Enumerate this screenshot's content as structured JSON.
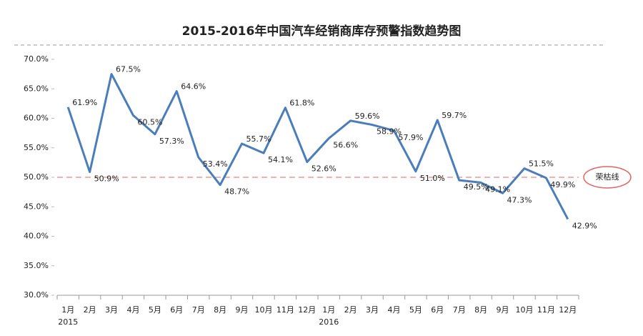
{
  "chart_data": {
    "type": "line",
    "title": "2015-2016年中国汽车经销商库存预警指数趋势图",
    "categories": [
      "1月",
      "2月",
      "3月",
      "4月",
      "5月",
      "6月",
      "7月",
      "8月",
      "9月",
      "10月",
      "11月",
      "12月",
      "1月",
      "2月",
      "3月",
      "4月",
      "5月",
      "6月",
      "7月",
      "8月",
      "9月",
      "10月",
      "11月",
      "12月"
    ],
    "years": [
      "2015",
      null,
      null,
      null,
      null,
      null,
      null,
      null,
      null,
      null,
      null,
      null,
      "2016",
      null,
      null,
      null,
      null,
      null,
      null,
      null,
      null,
      null,
      null,
      null
    ],
    "series": [
      {
        "name": "库存预警指数",
        "color": "#4a7ebb",
        "values": [
          61.9,
          50.9,
          67.5,
          60.5,
          57.3,
          64.6,
          53.4,
          48.7,
          55.7,
          54.1,
          61.8,
          52.6,
          56.6,
          59.6,
          58.9,
          57.9,
          51.0,
          59.7,
          49.5,
          49.1,
          47.3,
          51.5,
          49.9,
          42.9
        ],
        "value_labels": [
          "61.9%",
          "50.9%",
          "67.5%",
          "60.5%",
          "57.3%",
          "64.6%",
          "53.4%",
          "48.7%",
          "55.7%",
          "54.1%",
          "61.8%",
          "52.6%",
          "56.6%",
          "59.6%",
          "58.9%",
          "57.9%",
          "51.0%",
          "59.7%",
          "49.5%",
          "49.1%",
          "47.3%",
          "51.5%",
          "49.9%",
          "42.9%"
        ]
      }
    ],
    "reference_line": {
      "value": 50,
      "label": "荣枯线",
      "color": "#e06666"
    },
    "ylim": [
      30,
      70
    ],
    "yticks": [
      {
        "value": 30,
        "label": "30.0%"
      },
      {
        "value": 35,
        "label": "35.0%"
      },
      {
        "value": 40,
        "label": "40.0%"
      },
      {
        "value": 45,
        "label": "45.0%"
      },
      {
        "value": 50,
        "label": "50.0%"
      },
      {
        "value": 55,
        "label": "55.0%"
      },
      {
        "value": 60,
        "label": "60.0%"
      },
      {
        "value": 65,
        "label": "65.0%"
      },
      {
        "value": 70,
        "label": "70.0%"
      }
    ],
    "grid": false
  }
}
